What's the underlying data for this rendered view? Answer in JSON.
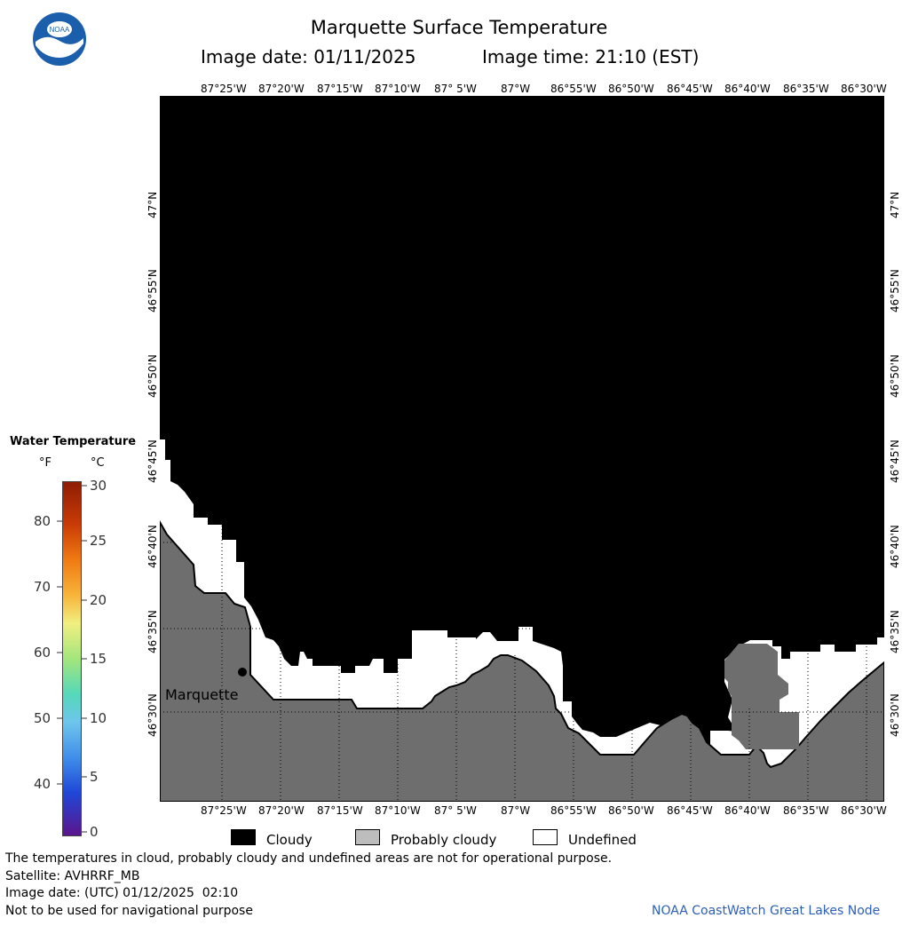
{
  "header": {
    "title": "Marquette Surface Temperature",
    "image_date": "Image date: 01/11/2025",
    "image_time": "Image time: 21:10 (EST)"
  },
  "map": {
    "lon_ticks": [
      "87°25'W",
      "87°20'W",
      "87°15'W",
      "87°10'W",
      "87° 5'W",
      "87°W",
      "86°55'W",
      "86°50'W",
      "86°45'W",
      "86°40'W",
      "86°35'W",
      "86°30'W"
    ],
    "lat_ticks": [
      "47°N",
      "46°55'N",
      "46°50'N",
      "46°45'N",
      "46°40'N",
      "46°35'N",
      "46°30'N"
    ],
    "city_label": "Marquette",
    "colors": {
      "cloudy": "#000000",
      "probably_cloudy": "#6e6e6e",
      "undefined": "#ffffff"
    }
  },
  "scale": {
    "title": "Water Temperature",
    "unit_f": "°F",
    "unit_c": "°C",
    "f_values": [
      "80",
      "70",
      "60",
      "50",
      "40"
    ],
    "c_values": [
      "30",
      "25",
      "20",
      "15",
      "10",
      "5",
      "0"
    ]
  },
  "legend": {
    "cloudy": "Cloudy",
    "probably_cloudy": "Probably cloudy",
    "undefined": "Undefined"
  },
  "footer": {
    "note": "The temperatures in cloud, probably cloudy and undefined areas are not for operational purpose.",
    "satellite": "Satellite: AVHRRF_MB",
    "utc_date": "Image date: (UTC) 01/12/2025  02:10",
    "nav_note": "Not to be used for navigational purpose",
    "credit": "NOAA CoastWatch Great Lakes Node"
  }
}
